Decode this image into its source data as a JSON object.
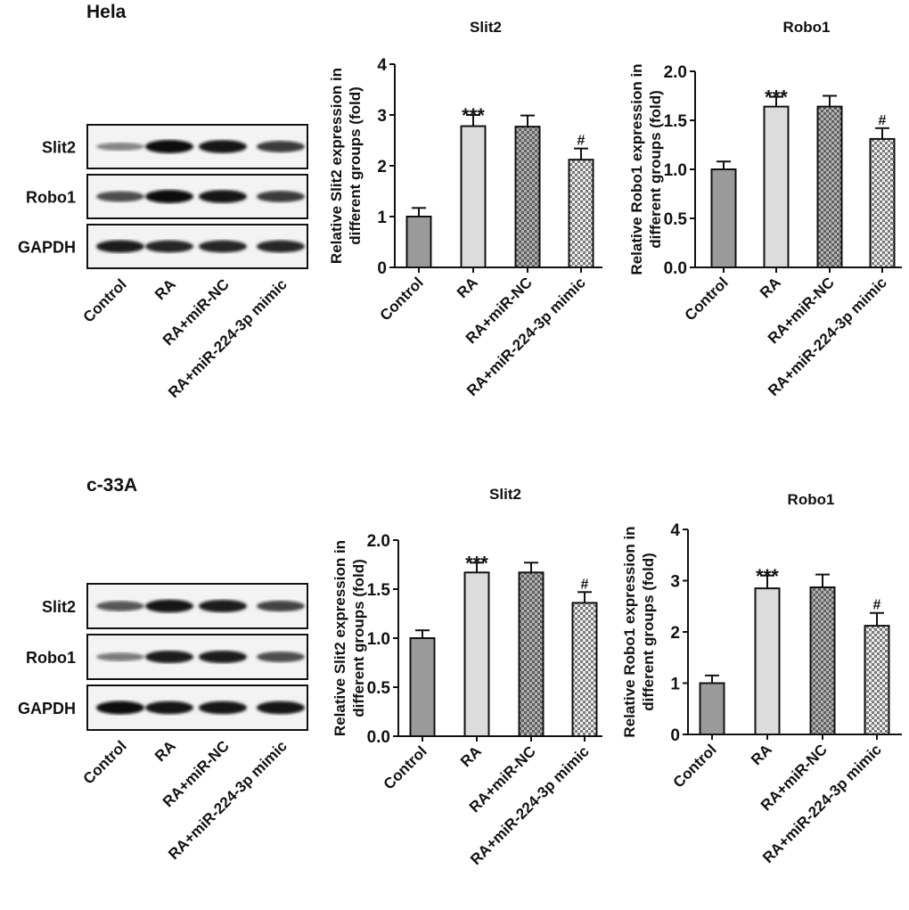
{
  "panels": [
    {
      "cell_line": "Hela",
      "blot": {
        "rows": [
          {
            "label": "Slit2",
            "band_intensity": [
              0.35,
              1.0,
              0.95,
              0.75
            ]
          },
          {
            "label": "Robo1",
            "band_intensity": [
              0.65,
              1.0,
              0.95,
              0.75
            ]
          },
          {
            "label": "GAPDH",
            "band_intensity": [
              0.9,
              0.85,
              0.85,
              0.85
            ]
          }
        ],
        "lanes": [
          "Control",
          "RA",
          "RA+miR-NC",
          "RA+miR-224-3p mimic"
        ]
      }
    },
    {
      "cell_line": "c-33A",
      "blot": {
        "rows": [
          {
            "label": "Slit2",
            "band_intensity": [
              0.6,
              0.95,
              0.9,
              0.7
            ]
          },
          {
            "label": "Robo1",
            "band_intensity": [
              0.4,
              0.9,
              0.9,
              0.65
            ]
          },
          {
            "label": "GAPDH",
            "band_intensity": [
              1.0,
              0.95,
              0.95,
              0.95
            ]
          }
        ],
        "lanes": [
          "Control",
          "RA",
          "RA+miR-NC",
          "RA+miR-224-3p mimic"
        ]
      }
    }
  ],
  "chart_data": [
    {
      "type": "bar",
      "title": "Slit2",
      "ylabel": [
        "Relative Slit2 expression in",
        "different groups (fold)"
      ],
      "categories": [
        "Control",
        "RA",
        "RA+miR-NC",
        "RA+miR-224-3p mimic"
      ],
      "values": [
        1.0,
        2.78,
        2.77,
        2.12
      ],
      "errors": [
        0.17,
        0.22,
        0.22,
        0.22
      ],
      "annotations": [
        "",
        "***",
        "",
        "#"
      ],
      "ylim": [
        0,
        4
      ],
      "yticks": [
        "0",
        "1",
        "2",
        "3",
        "4"
      ],
      "grid": false
    },
    {
      "type": "bar",
      "title": "Robo1",
      "ylabel": [
        "Relative Robo1 expression in",
        "different groups (fold)"
      ],
      "categories": [
        "Control",
        "RA",
        "RA+miR-NC",
        "RA+miR-224-3p mimic"
      ],
      "values": [
        1.0,
        1.64,
        1.64,
        1.31
      ],
      "errors": [
        0.08,
        0.1,
        0.11,
        0.11
      ],
      "annotations": [
        "",
        "***",
        "",
        "#"
      ],
      "ylim": [
        0,
        2
      ],
      "yticks": [
        "0.0",
        "0.5",
        "1.0",
        "1.5",
        "2.0"
      ],
      "grid": false
    },
    {
      "type": "bar",
      "title": "Slit2",
      "ylabel": [
        "Relative Slit2 expression in",
        "different groups (fold)"
      ],
      "categories": [
        "Control",
        "RA",
        "RA+miR-NC",
        "RA+miR-224-3p mimic"
      ],
      "values": [
        1.0,
        1.67,
        1.67,
        1.36
      ],
      "errors": [
        0.08,
        0.1,
        0.1,
        0.11
      ],
      "annotations": [
        "",
        "***",
        "",
        "#"
      ],
      "ylim": [
        0,
        2
      ],
      "yticks": [
        "0.0",
        "0.5",
        "1.0",
        "1.5",
        "2.0"
      ],
      "grid": false
    },
    {
      "type": "bar",
      "title": "Robo1",
      "ylabel": [
        "Relative Robo1 expression in",
        "different groups (fold)"
      ],
      "categories": [
        "Control",
        "RA",
        "RA+miR-NC",
        "RA+miR-224-3p mimic"
      ],
      "values": [
        1.0,
        2.85,
        2.87,
        2.12
      ],
      "errors": [
        0.15,
        0.25,
        0.25,
        0.25
      ],
      "annotations": [
        "",
        "***",
        "",
        "#"
      ],
      "ylim": [
        0,
        4
      ],
      "yticks": [
        "0",
        "1",
        "2",
        "3",
        "4"
      ],
      "grid": false
    }
  ],
  "colors": {
    "control": "#9a9a9a",
    "ra": "#dcdcdc",
    "nc_checker": [
      "#5f5f5f",
      "#b4b4b4"
    ],
    "mimic_checker": [
      "#7a7a7a",
      "#eeeeee"
    ]
  }
}
